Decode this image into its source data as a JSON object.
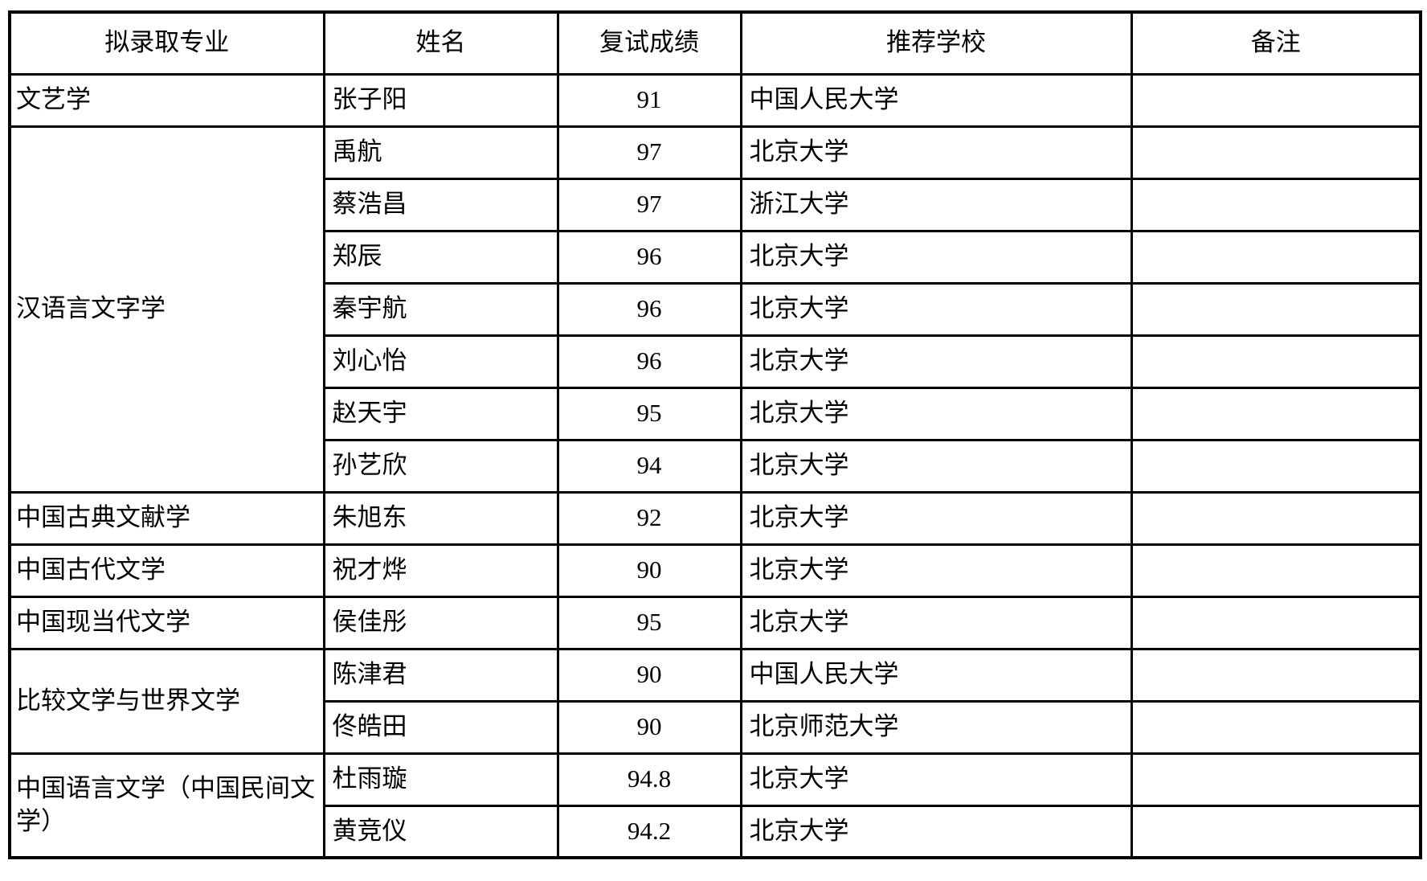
{
  "table": {
    "columns": [
      "拟录取专业",
      "姓名",
      "复试成绩",
      "推荐学校",
      "备注"
    ],
    "groups": [
      {
        "major": "文艺学",
        "students": [
          {
            "name": "张子阳",
            "score": "91",
            "school": "中国人民大学",
            "note": ""
          }
        ]
      },
      {
        "major": "汉语言文字学",
        "students": [
          {
            "name": "禹航",
            "score": "97",
            "school": "北京大学",
            "note": ""
          },
          {
            "name": "蔡浩昌",
            "score": "97",
            "school": "浙江大学",
            "note": ""
          },
          {
            "name": "郑辰",
            "score": "96",
            "school": "北京大学",
            "note": ""
          },
          {
            "name": "秦宇航",
            "score": "96",
            "school": "北京大学",
            "note": ""
          },
          {
            "name": "刘心怡",
            "score": "96",
            "school": "北京大学",
            "note": ""
          },
          {
            "name": "赵天宇",
            "score": "95",
            "school": "北京大学",
            "note": ""
          },
          {
            "name": "孙艺欣",
            "score": "94",
            "school": "北京大学",
            "note": ""
          }
        ]
      },
      {
        "major": "中国古典文献学",
        "students": [
          {
            "name": "朱旭东",
            "score": "92",
            "school": "北京大学",
            "note": ""
          }
        ]
      },
      {
        "major": "中国古代文学",
        "students": [
          {
            "name": "祝才烨",
            "score": "90",
            "school": "北京大学",
            "note": ""
          }
        ]
      },
      {
        "major": "中国现当代文学",
        "students": [
          {
            "name": "侯佳彤",
            "score": "95",
            "school": "北京大学",
            "note": ""
          }
        ]
      },
      {
        "major": "比较文学与世界文学",
        "students": [
          {
            "name": "陈津君",
            "score": "90",
            "school": "中国人民大学",
            "note": ""
          },
          {
            "name": "佟皓田",
            "score": "90",
            "school": "北京师范大学",
            "note": ""
          }
        ]
      },
      {
        "major": "中国语言文学（中国民间文学）",
        "students": [
          {
            "name": "杜雨璇",
            "score": "94.8",
            "school": "北京大学",
            "note": ""
          },
          {
            "name": "黄竞仪",
            "score": "94.2",
            "school": "北京大学",
            "note": ""
          }
        ]
      }
    ]
  }
}
